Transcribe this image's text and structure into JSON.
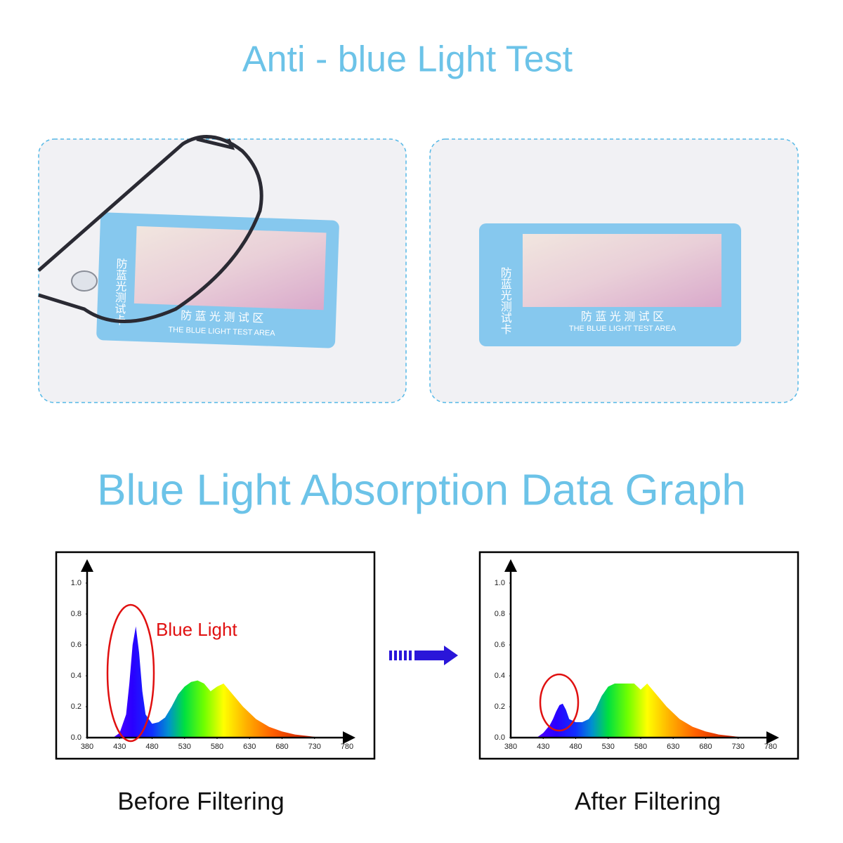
{
  "header": {
    "title": "Anti - blue Light Test"
  },
  "photos": [
    {
      "card_vertical": "防蓝光测试卡",
      "card_heading": "防 蓝 光 测 试 区",
      "card_caption": "THE BLUE LIGHT TEST AREA"
    },
    {
      "card_vertical": "防蓝光测试卡",
      "card_heading": "防 蓝 光 测 试 区",
      "card_caption": "THE BLUE LIGHT TEST AREA"
    }
  ],
  "section_title": "Blue Light Absorption Data Graph",
  "chart_data": [
    {
      "type": "area",
      "caption": "Before Filtering",
      "annotation": "Blue Light",
      "x": [
        420,
        430,
        440,
        445,
        450,
        455,
        460,
        465,
        470,
        480,
        490,
        500,
        510,
        520,
        530,
        540,
        550,
        560,
        570,
        580,
        590,
        600,
        620,
        640,
        660,
        680,
        700,
        720,
        740
      ],
      "values": [
        0,
        0.03,
        0.15,
        0.35,
        0.6,
        0.72,
        0.55,
        0.3,
        0.15,
        0.09,
        0.1,
        0.13,
        0.2,
        0.28,
        0.33,
        0.36,
        0.37,
        0.35,
        0.3,
        0.33,
        0.35,
        0.3,
        0.2,
        0.12,
        0.07,
        0.04,
        0.02,
        0.01,
        0
      ],
      "xlim": [
        380,
        780
      ],
      "xticks": [
        380,
        430,
        480,
        530,
        580,
        630,
        680,
        730,
        780
      ],
      "ylim": [
        0,
        1.1
      ],
      "yticks": [
        {
          "value": 0,
          "label": "0.0"
        },
        0.2,
        0.4,
        0.6,
        0.8,
        {
          "value": 1,
          "label": "1.0"
        }
      ]
    },
    {
      "type": "area",
      "caption": "After Filtering",
      "x": [
        420,
        430,
        440,
        445,
        450,
        455,
        460,
        465,
        470,
        480,
        490,
        500,
        510,
        520,
        530,
        540,
        550,
        560,
        570,
        580,
        590,
        600,
        620,
        640,
        660,
        680,
        700,
        720,
        740
      ],
      "values": [
        0,
        0.03,
        0.08,
        0.12,
        0.17,
        0.21,
        0.22,
        0.18,
        0.12,
        0.1,
        0.1,
        0.12,
        0.18,
        0.27,
        0.33,
        0.35,
        0.35,
        0.35,
        0.35,
        0.31,
        0.35,
        0.3,
        0.2,
        0.12,
        0.07,
        0.04,
        0.02,
        0.01,
        0
      ],
      "xlim": [
        380,
        780
      ],
      "xticks": [
        380,
        430,
        480,
        530,
        580,
        630,
        680,
        730,
        780
      ],
      "ylim": [
        0,
        1.1
      ],
      "yticks": [
        {
          "value": 0,
          "label": "0.0"
        },
        0.2,
        0.4,
        0.6,
        0.8,
        {
          "value": 1,
          "label": "1.0"
        }
      ]
    }
  ]
}
